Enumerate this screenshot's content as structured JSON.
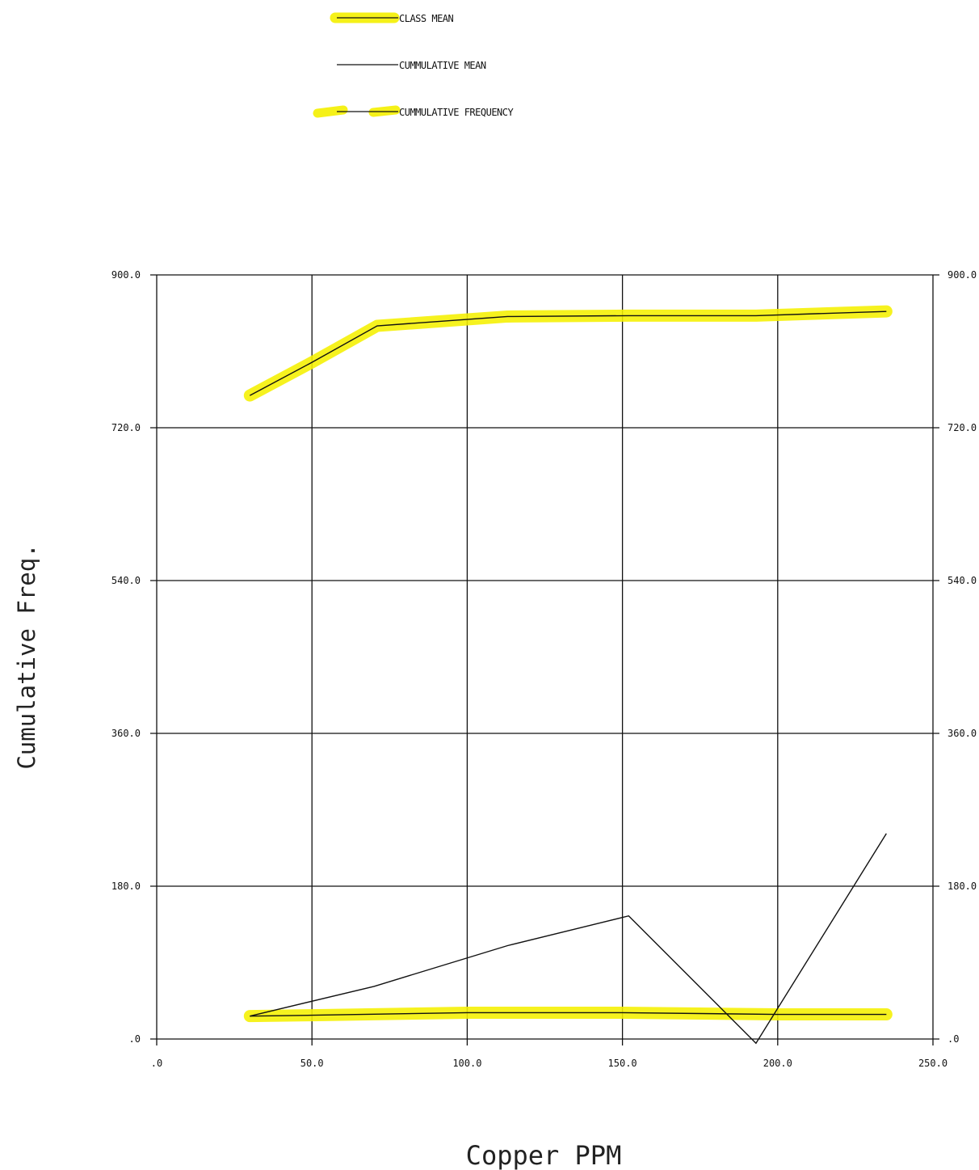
{
  "chart_data": {
    "type": "line",
    "title": "",
    "xlabel": "Copper PPM",
    "ylabel": "Cumulative Freq.",
    "xlim": [
      0,
      250
    ],
    "ylim": [
      0,
      900
    ],
    "x_ticks": [
      ".0",
      "50.0",
      "100.0",
      "150.0",
      "200.0",
      "250.0"
    ],
    "y_ticks": [
      ".0",
      "180.0",
      "360.0",
      "540.0",
      "720.0",
      "900.0"
    ],
    "y_ticks_right": [
      ".0",
      "180.0",
      "360.0",
      "540.0",
      "720.0",
      "900.0"
    ],
    "grid": true,
    "legend_position": "top",
    "highlight_color": "#f5f000",
    "line_color": "#111111",
    "series": [
      {
        "name": "CLASS MEAN",
        "highlighted": true,
        "x": [
          30,
          50,
          100,
          150,
          200,
          235
        ],
        "y": [
          27,
          28,
          31,
          31,
          29,
          29
        ]
      },
      {
        "name": "CUMMULATIVE MEAN",
        "highlighted": false,
        "x": [
          30,
          70,
          113,
          152,
          193,
          235
        ],
        "y": [
          27,
          62,
          110,
          145,
          -5,
          242
        ]
      },
      {
        "name": "CUMMULATIVE FREQUENCY",
        "highlighted": true,
        "x": [
          30,
          50,
          71,
          113,
          152,
          193,
          235
        ],
        "y": [
          758,
          797,
          840,
          851,
          852,
          852,
          857
        ]
      }
    ]
  }
}
